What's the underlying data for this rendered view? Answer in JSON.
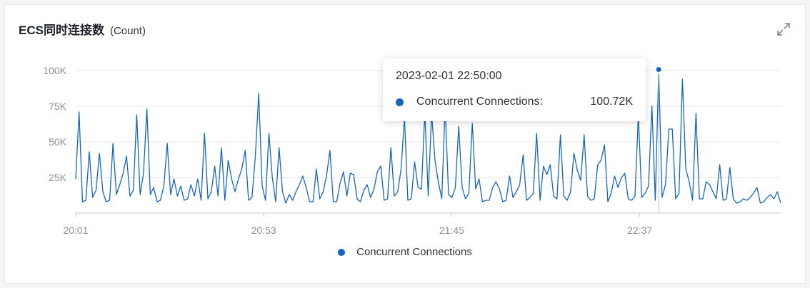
{
  "header": {
    "title": "ECS同时连接数",
    "unit": "(Count)"
  },
  "icons": {
    "expand": "expand-icon"
  },
  "colors": {
    "series": "#1565c0",
    "grid": "#e3e5e8",
    "axis": "#c6c9ce"
  },
  "tooltip": {
    "time": "2023-02-01 22:50:00",
    "series_name": "Concurrent Connections:",
    "value": "100.72K"
  },
  "legend": {
    "label": "Concurrent Connections"
  },
  "chart_data": {
    "type": "line",
    "title": "ECS同时连接数",
    "ylabel": "(Count)",
    "x_range": [
      "20:01",
      "23:16"
    ],
    "ylim": [
      0,
      100000
    ],
    "y_ticks": [
      25000,
      50000,
      75000,
      100000
    ],
    "y_tick_labels": [
      "25K",
      "50K",
      "75K",
      "100K"
    ],
    "x_tick_labels": [
      "20:01",
      "20:53",
      "21:45",
      "22:37"
    ],
    "grid": true,
    "legend_position": "bottom",
    "highlighted_point": {
      "time": "22:50",
      "value": 100720
    },
    "series": [
      {
        "name": "Concurrent Connections",
        "values": [
          24000,
          71000,
          8000,
          9000,
          43000,
          11000,
          16000,
          42000,
          15000,
          8000,
          9000,
          49000,
          13000,
          20000,
          28000,
          40000,
          12000,
          16000,
          69000,
          13000,
          28000,
          73000,
          13000,
          18000,
          8000,
          9000,
          19000,
          49000,
          13000,
          24000,
          12000,
          19000,
          9000,
          10000,
          20000,
          12000,
          24000,
          9000,
          56000,
          10000,
          15000,
          33000,
          12000,
          46000,
          9000,
          37000,
          24000,
          15000,
          24000,
          31000,
          44000,
          9000,
          11000,
          40000,
          84000,
          19000,
          9000,
          56000,
          25000,
          8000,
          46000,
          15000,
          7000,
          13000,
          9000,
          15000,
          20000,
          26000,
          18000,
          8000,
          8000,
          31000,
          10000,
          15000,
          26000,
          44000,
          8000,
          8000,
          21000,
          29000,
          12000,
          28000,
          27000,
          10000,
          8000,
          16000,
          20000,
          11000,
          17000,
          29000,
          33000,
          9000,
          10000,
          46000,
          12000,
          15000,
          31000,
          67000,
          9000,
          10000,
          36000,
          18000,
          17000,
          71000,
          12000,
          70000,
          37000,
          22000,
          10000,
          75000,
          13000,
          11000,
          18000,
          61000,
          18000,
          10000,
          14000,
          63000,
          17000,
          24000,
          8000,
          9000,
          9000,
          18000,
          22000,
          17000,
          8000,
          9000,
          26000,
          11000,
          15000,
          20000,
          41000,
          9000,
          11000,
          14000,
          56000,
          9000,
          33000,
          27000,
          34000,
          12000,
          10000,
          55000,
          12000,
          9000,
          15000,
          42000,
          30000,
          23000,
          55000,
          12000,
          9000,
          10000,
          34000,
          37000,
          48000,
          8000,
          14000,
          26000,
          18000,
          25000,
          28000,
          10000,
          9000,
          12000,
          69000,
          11000,
          14000,
          19000,
          75000,
          9000,
          100720,
          11000,
          20000,
          59000,
          59000,
          10000,
          14000,
          94000,
          31000,
          22000,
          9000,
          70000,
          10000,
          10000,
          22000,
          20000,
          15000,
          10000,
          34000,
          9000,
          10000,
          32000,
          10000,
          7000,
          8000,
          10000,
          9000,
          11000,
          14000,
          18000,
          7000,
          8000,
          11000,
          13000,
          10000,
          15000,
          7000
        ]
      }
    ]
  }
}
